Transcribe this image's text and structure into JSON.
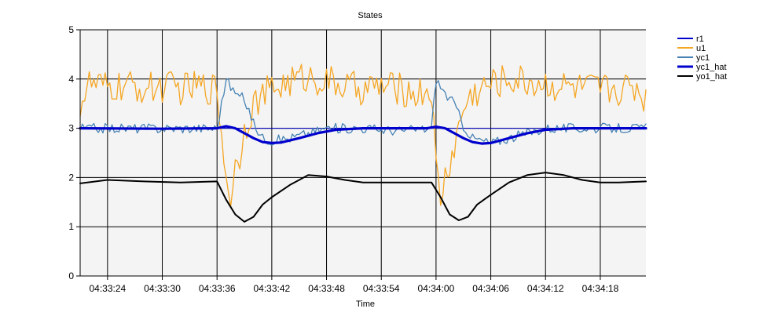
{
  "chart_data": {
    "type": "line",
    "title": "States",
    "xlabel": "Time",
    "ylabel": "",
    "ylim": [
      0,
      5
    ],
    "yticks": [
      0,
      1,
      2,
      3,
      4,
      5
    ],
    "x_range": [
      "04:33:21",
      "04:34:23"
    ],
    "xticks": [
      "04:33:24",
      "04:33:30",
      "04:33:36",
      "04:33:42",
      "04:33:48",
      "04:33:54",
      "04:34:00",
      "04:34:06",
      "04:34:12",
      "04:34:18"
    ],
    "grid": true,
    "legend_position": "top-right",
    "plot_background": "#f4f4f4",
    "series": [
      {
        "name": "r1",
        "color": "#0000cd",
        "style": "thin",
        "points": [
          [
            "04:33:21",
            3.0
          ],
          [
            "04:34:23",
            3.0
          ]
        ]
      },
      {
        "name": "u1",
        "color": "#f5a623",
        "style": "noisy",
        "points": [
          [
            "04:33:21",
            3.5
          ],
          [
            "04:33:22",
            3.9
          ],
          [
            "04:33:24",
            3.8
          ],
          [
            "04:33:26",
            3.85
          ],
          [
            "04:33:28",
            3.8
          ],
          [
            "04:33:30",
            3.85
          ],
          [
            "04:33:32",
            3.8
          ],
          [
            "04:33:34",
            3.85
          ],
          [
            "04:33:36",
            3.8
          ],
          [
            "04:33:37",
            2.0
          ],
          [
            "04:33:37.5",
            1.65
          ],
          [
            "04:33:38",
            2.2
          ],
          [
            "04:33:38.5",
            2.5
          ],
          [
            "04:33:39",
            3.0
          ],
          [
            "04:33:40",
            3.5
          ],
          [
            "04:33:42",
            3.8
          ],
          [
            "04:33:44",
            3.95
          ],
          [
            "04:33:46",
            4.05
          ],
          [
            "04:33:48",
            3.95
          ],
          [
            "04:33:50",
            3.85
          ],
          [
            "04:33:52",
            3.8
          ],
          [
            "04:33:54",
            3.85
          ],
          [
            "04:33:56",
            3.8
          ],
          [
            "04:33:58",
            3.7
          ],
          [
            "04:33:59.5",
            3.8
          ],
          [
            "04:34:00",
            2.2
          ],
          [
            "04:34:00.5",
            1.55
          ],
          [
            "04:34:01",
            2.0
          ],
          [
            "04:34:02",
            2.6
          ],
          [
            "04:34:03",
            3.4
          ],
          [
            "04:34:04",
            3.7
          ],
          [
            "04:34:06",
            3.9
          ],
          [
            "04:34:08",
            4.0
          ],
          [
            "04:34:10",
            3.95
          ],
          [
            "04:34:12",
            3.9
          ],
          [
            "04:34:14",
            3.85
          ],
          [
            "04:34:16",
            3.8
          ],
          [
            "04:34:18",
            3.8
          ],
          [
            "04:34:20",
            3.8
          ],
          [
            "04:34:22",
            3.85
          ],
          [
            "04:34:23",
            3.55
          ]
        ]
      },
      {
        "name": "yc1",
        "color": "#4682b4",
        "style": "noisy",
        "points": [
          [
            "04:33:21",
            3.0
          ],
          [
            "04:33:24",
            3.0
          ],
          [
            "04:33:28",
            3.0
          ],
          [
            "04:33:32",
            3.0
          ],
          [
            "04:33:36",
            3.0
          ],
          [
            "04:33:37",
            4.0
          ],
          [
            "04:33:38",
            3.7
          ],
          [
            "04:33:39",
            3.6
          ],
          [
            "04:33:40",
            3.1
          ],
          [
            "04:33:41",
            2.8
          ],
          [
            "04:33:42",
            2.75
          ],
          [
            "04:33:44",
            2.8
          ],
          [
            "04:33:46",
            2.9
          ],
          [
            "04:33:48",
            3.0
          ],
          [
            "04:33:52",
            3.0
          ],
          [
            "04:33:56",
            2.95
          ],
          [
            "04:33:59.5",
            3.0
          ],
          [
            "04:34:00",
            4.0
          ],
          [
            "04:34:01",
            3.7
          ],
          [
            "04:34:02",
            3.5
          ],
          [
            "04:34:03",
            3.05
          ],
          [
            "04:34:04",
            2.8
          ],
          [
            "04:34:06",
            2.7
          ],
          [
            "04:34:08",
            2.8
          ],
          [
            "04:34:10",
            2.9
          ],
          [
            "04:34:12",
            3.0
          ],
          [
            "04:34:16",
            3.0
          ],
          [
            "04:34:20",
            3.0
          ],
          [
            "04:34:23",
            3.0
          ]
        ]
      },
      {
        "name": "yc1_hat",
        "color": "#0000cd",
        "style": "thick",
        "points": [
          [
            "04:33:21",
            3.0
          ],
          [
            "04:33:30",
            2.99
          ],
          [
            "04:33:36",
            3.0
          ],
          [
            "04:33:37",
            3.04
          ],
          [
            "04:33:38",
            3.0
          ],
          [
            "04:33:39",
            2.9
          ],
          [
            "04:33:40",
            2.8
          ],
          [
            "04:33:41",
            2.72
          ],
          [
            "04:33:42",
            2.7
          ],
          [
            "04:33:43",
            2.71
          ],
          [
            "04:33:45",
            2.8
          ],
          [
            "04:33:47",
            2.9
          ],
          [
            "04:33:49",
            2.97
          ],
          [
            "04:33:52",
            3.0
          ],
          [
            "04:33:59",
            3.0
          ],
          [
            "04:34:00",
            3.03
          ],
          [
            "04:34:01",
            3.0
          ],
          [
            "04:34:02",
            2.9
          ],
          [
            "04:34:03",
            2.8
          ],
          [
            "04:34:04",
            2.72
          ],
          [
            "04:34:05",
            2.69
          ],
          [
            "04:34:06",
            2.7
          ],
          [
            "04:34:08",
            2.8
          ],
          [
            "04:34:10",
            2.9
          ],
          [
            "04:34:12",
            2.97
          ],
          [
            "04:34:15",
            3.0
          ],
          [
            "04:34:23",
            3.0
          ]
        ]
      },
      {
        "name": "yo1_hat",
        "color": "#000000",
        "style": "medium",
        "points": [
          [
            "04:33:21",
            1.88
          ],
          [
            "04:33:24",
            1.95
          ],
          [
            "04:33:28",
            1.92
          ],
          [
            "04:33:32",
            1.9
          ],
          [
            "04:33:36",
            1.92
          ],
          [
            "04:33:37",
            1.55
          ],
          [
            "04:33:38",
            1.25
          ],
          [
            "04:33:39",
            1.1
          ],
          [
            "04:33:40",
            1.2
          ],
          [
            "04:33:41",
            1.45
          ],
          [
            "04:33:42",
            1.6
          ],
          [
            "04:33:44",
            1.85
          ],
          [
            "04:33:46",
            2.05
          ],
          [
            "04:33:48",
            2.02
          ],
          [
            "04:33:50",
            1.95
          ],
          [
            "04:33:52",
            1.9
          ],
          [
            "04:33:56",
            1.9
          ],
          [
            "04:33:59.5",
            1.9
          ],
          [
            "04:34:00.5",
            1.6
          ],
          [
            "04:34:01.5",
            1.25
          ],
          [
            "04:34:02.5",
            1.13
          ],
          [
            "04:34:03.5",
            1.2
          ],
          [
            "04:34:04.5",
            1.45
          ],
          [
            "04:34:06",
            1.65
          ],
          [
            "04:34:08",
            1.9
          ],
          [
            "04:34:10",
            2.05
          ],
          [
            "04:34:12",
            2.1
          ],
          [
            "04:34:14",
            2.05
          ],
          [
            "04:34:16",
            1.95
          ],
          [
            "04:34:18",
            1.9
          ],
          [
            "04:34:20",
            1.9
          ],
          [
            "04:34:23",
            1.92
          ]
        ]
      }
    ]
  }
}
